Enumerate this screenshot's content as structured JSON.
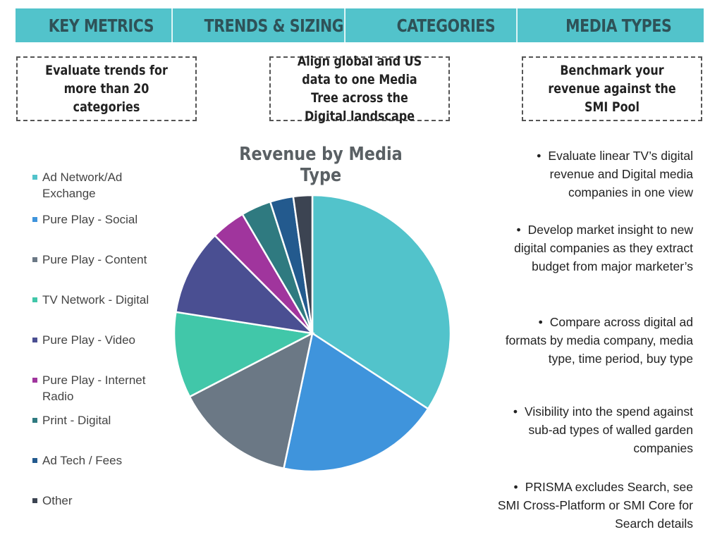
{
  "tabs": [
    "KEY METRICS",
    "TRENDS & SIZING",
    "CATEGORIES",
    "MEDIA TYPES"
  ],
  "boxes": [
    "Evaluate trends for more than 20 categories",
    "Align global and US data to one Media Tree across the Digital landscape",
    "Benchmark your revenue against the SMI Pool"
  ],
  "bullets": [
    "Evaluate linear TV’s digital revenue and Digital media companies in one view",
    "Develop market insight to new digital companies as they extract budget from major marketer’s",
    "Compare across digital ad formats by media company, media type, time period, buy type",
    "Visibility into the spend against sub-ad types of walled garden companies",
    "PRISMA excludes Search, see SMI Cross-Platform or SMI Core for Search details"
  ],
  "chart_data": {
    "type": "pie",
    "title": "Revenue by Media Type",
    "legend_position": "left",
    "categories": [
      "Ad Network/Ad Exchange",
      "Pure Play - Social",
      "Pure Play - Content",
      "TV Network - Digital",
      "Pure Play - Video",
      "Pure Play - Internet Radio",
      "Print - Digital",
      "Ad Tech / Fees",
      "Other"
    ],
    "values": [
      34,
      19,
      14,
      10,
      10,
      4,
      3.5,
      2.7,
      2.2
    ],
    "colors": [
      "#52c3cb",
      "#3f94dc",
      "#6b7885",
      "#41c7a9",
      "#4a4f92",
      "#a0359d",
      "#2f7a80",
      "#235a8e",
      "#3c4452"
    ]
  }
}
